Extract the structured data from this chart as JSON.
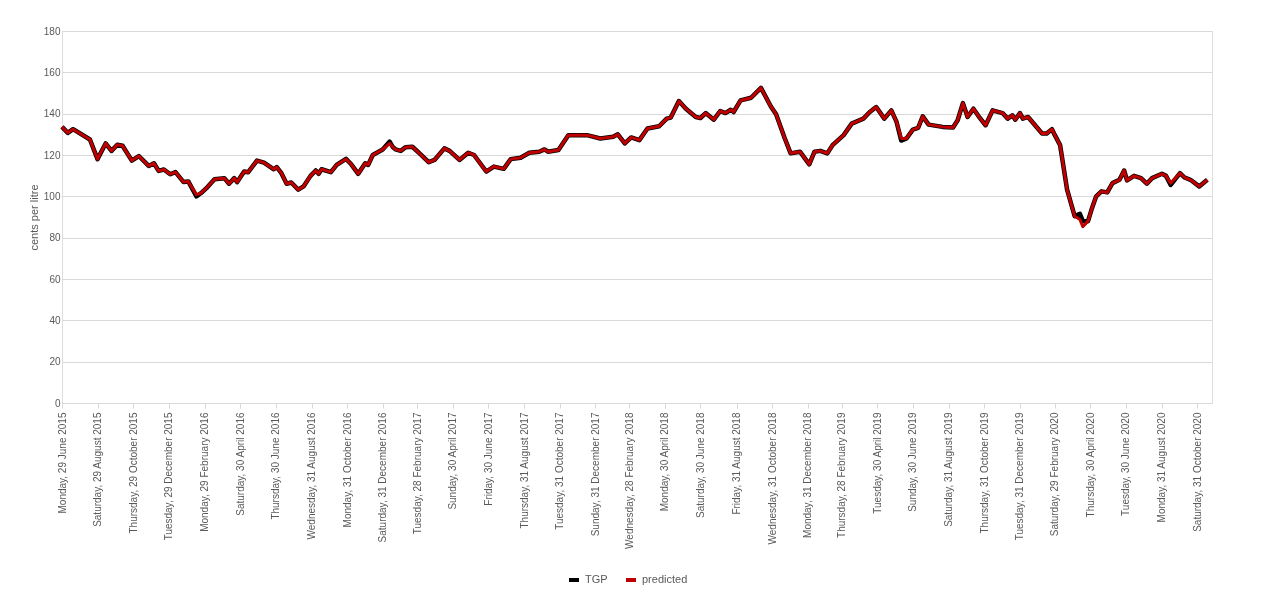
{
  "chart_data": {
    "type": "line",
    "ylabel": "cents per litre",
    "xlim": [
      "2015-06-29",
      "2020-11-25"
    ],
    "ylim": [
      0,
      180
    ],
    "yticks": [
      0,
      20,
      40,
      60,
      80,
      100,
      120,
      140,
      160,
      180
    ],
    "xticks": [
      {
        "value": "2015-06-29",
        "label": "Monday, 29 June 2015"
      },
      {
        "value": "2015-08-29",
        "label": "Saturday, 29 August 2015"
      },
      {
        "value": "2015-10-29",
        "label": "Thursday, 29 October 2015"
      },
      {
        "value": "2015-12-29",
        "label": "Tuesday, 29 December 2015"
      },
      {
        "value": "2016-02-29",
        "label": "Monday, 29 February 2016"
      },
      {
        "value": "2016-04-30",
        "label": "Saturday, 30 April 2016"
      },
      {
        "value": "2016-06-30",
        "label": "Thursday, 30 June 2016"
      },
      {
        "value": "2016-08-31",
        "label": "Wednesday, 31 August 2016"
      },
      {
        "value": "2016-10-31",
        "label": "Monday, 31 October 2016"
      },
      {
        "value": "2016-12-31",
        "label": "Saturday, 31 December 2016"
      },
      {
        "value": "2017-02-28",
        "label": "Tuesday, 28 February 2017"
      },
      {
        "value": "2017-04-30",
        "label": "Sunday, 30 April 2017"
      },
      {
        "value": "2017-06-30",
        "label": "Friday, 30 June 2017"
      },
      {
        "value": "2017-08-31",
        "label": "Thursday, 31 August 2017"
      },
      {
        "value": "2017-10-31",
        "label": "Tuesday, 31 October 2017"
      },
      {
        "value": "2017-12-31",
        "label": "Sunday, 31 December 2017"
      },
      {
        "value": "2018-02-28",
        "label": "Wednesday, 28 February 2018"
      },
      {
        "value": "2018-04-30",
        "label": "Monday, 30 April 2018"
      },
      {
        "value": "2018-06-30",
        "label": "Saturday, 30 June 2018"
      },
      {
        "value": "2018-08-31",
        "label": "Friday, 31 August 2018"
      },
      {
        "value": "2018-10-31",
        "label": "Wednesday, 31 October 2018"
      },
      {
        "value": "2018-12-31",
        "label": "Monday, 31 December 2018"
      },
      {
        "value": "2019-02-28",
        "label": "Thursday, 28 February 2019"
      },
      {
        "value": "2019-04-30",
        "label": "Tuesday, 30 April 2019"
      },
      {
        "value": "2019-06-30",
        "label": "Sunday, 30 June 2019"
      },
      {
        "value": "2019-08-31",
        "label": "Saturday, 31 August 2019"
      },
      {
        "value": "2019-10-31",
        "label": "Thursday, 31 October 2019"
      },
      {
        "value": "2019-12-31",
        "label": "Tuesday, 31 December 2019"
      },
      {
        "value": "2020-02-29",
        "label": "Saturday, 29 February 2020"
      },
      {
        "value": "2020-04-30",
        "label": "Thursday, 30 April 2020"
      },
      {
        "value": "2020-06-30",
        "label": "Tuesday, 30 June 2020"
      },
      {
        "value": "2020-08-31",
        "label": "Monday, 31 August 2020"
      },
      {
        "value": "2020-10-31",
        "label": "Saturday, 31 October 2020"
      }
    ],
    "x": [
      "2015-06-29",
      "2015-07-09",
      "2015-07-18",
      "2015-08-16",
      "2015-08-29",
      "2015-09-12",
      "2015-09-22",
      "2015-10-02",
      "2015-10-11",
      "2015-10-27",
      "2015-11-08",
      "2015-11-25",
      "2015-12-04",
      "2015-12-12",
      "2015-12-21",
      "2016-01-01",
      "2016-01-10",
      "2016-01-24",
      "2016-02-01",
      "2016-02-15",
      "2016-02-23",
      "2016-03-05",
      "2016-03-17",
      "2016-04-03",
      "2016-04-11",
      "2016-04-20",
      "2016-04-25",
      "2016-05-07",
      "2016-05-14",
      "2016-05-29",
      "2016-06-10",
      "2016-06-27",
      "2016-07-02",
      "2016-07-10",
      "2016-07-19",
      "2016-07-27",
      "2016-08-08",
      "2016-08-17",
      "2016-08-29",
      "2016-09-07",
      "2016-09-12",
      "2016-09-17",
      "2016-10-03",
      "2016-10-13",
      "2016-10-29",
      "2016-11-07",
      "2016-11-19",
      "2016-12-01",
      "2016-12-06",
      "2016-12-14",
      "2016-12-31",
      "2017-01-12",
      "2017-01-17",
      "2017-01-22",
      "2017-01-31",
      "2017-02-08",
      "2017-02-20",
      "2017-03-03",
      "2017-03-20",
      "2017-03-30",
      "2017-04-16",
      "2017-04-25",
      "2017-05-12",
      "2017-05-27",
      "2017-06-06",
      "2017-06-27",
      "2017-07-10",
      "2017-07-27",
      "2017-08-08",
      "2017-08-25",
      "2017-09-09",
      "2017-09-26",
      "2017-10-05",
      "2017-10-11",
      "2017-10-29",
      "2017-11-15",
      "2017-12-17",
      "2018-01-09",
      "2018-01-31",
      "2018-02-08",
      "2018-02-20",
      "2018-03-03",
      "2018-03-17",
      "2018-03-31",
      "2018-04-20",
      "2018-05-03",
      "2018-05-10",
      "2018-05-24",
      "2018-06-05",
      "2018-06-22",
      "2018-06-30",
      "2018-07-09",
      "2018-07-23",
      "2018-08-03",
      "2018-08-12",
      "2018-08-21",
      "2018-08-26",
      "2018-09-07",
      "2018-09-25",
      "2018-10-12",
      "2018-10-29",
      "2018-11-07",
      "2018-11-22",
      "2018-12-02",
      "2018-12-18",
      "2019-01-03",
      "2019-01-12",
      "2019-01-22",
      "2019-02-03",
      "2019-02-12",
      "2019-03-03",
      "2019-03-17",
      "2019-04-06",
      "2019-04-17",
      "2019-04-28",
      "2019-05-12",
      "2019-05-24",
      "2019-06-02",
      "2019-06-10",
      "2019-06-19",
      "2019-06-30",
      "2019-07-09",
      "2019-07-17",
      "2019-07-27",
      "2019-08-20",
      "2019-09-07",
      "2019-09-15",
      "2019-09-24",
      "2019-10-02",
      "2019-10-12",
      "2019-10-21",
      "2019-11-02",
      "2019-11-14",
      "2019-12-01",
      "2019-12-10",
      "2019-12-18",
      "2019-12-23",
      "2019-12-31",
      "2020-01-05",
      "2020-01-14",
      "2020-02-07",
      "2020-02-15",
      "2020-02-24",
      "2020-02-29",
      "2020-03-09",
      "2020-03-21",
      "2020-04-03",
      "2020-04-12",
      "2020-04-17",
      "2020-04-26",
      "2020-05-02",
      "2020-05-10",
      "2020-05-19",
      "2020-05-29",
      "2020-06-07",
      "2020-06-19",
      "2020-06-27",
      "2020-07-02",
      "2020-07-14",
      "2020-07-26",
      "2020-08-05",
      "2020-08-14",
      "2020-08-31",
      "2020-09-07",
      "2020-09-15",
      "2020-10-01",
      "2020-10-09",
      "2020-10-19",
      "2020-11-03",
      "2020-11-17"
    ],
    "series": [
      {
        "name": "TGP",
        "color": "#000000",
        "values": [
          133.6,
          130.7,
          132.5,
          127.5,
          118,
          125.6,
          122,
          125,
          124.5,
          117.3,
          119.5,
          114.7,
          116,
          112.3,
          113,
          110.7,
          111.7,
          106.9,
          107.2,
          100,
          101.6,
          104.5,
          108.3,
          108.8,
          106.1,
          108.8,
          106.9,
          112,
          111.7,
          117.3,
          116.3,
          113.1,
          114.1,
          111.2,
          106.1,
          106.7,
          103.2,
          104.8,
          109.9,
          112.5,
          110.9,
          113.1,
          111.7,
          115.2,
          118.1,
          115.5,
          110.9,
          116,
          115.2,
          120,
          122.7,
          126.5,
          124,
          122.7,
          122,
          123.7,
          124,
          121.1,
          116.5,
          117.6,
          123.2,
          122,
          117.6,
          121.1,
          120,
          112,
          114.4,
          113.3,
          118,
          118.7,
          121.1,
          121.6,
          122.7,
          121.6,
          122.4,
          129.6,
          129.6,
          128,
          128.8,
          130,
          125.6,
          128.5,
          127.2,
          132.8,
          133.9,
          137.6,
          138.1,
          146.1,
          142.4,
          138.4,
          137.9,
          140.3,
          137.1,
          141.3,
          140.3,
          141.9,
          140.8,
          146.4,
          147.7,
          152.5,
          143.5,
          139.7,
          128,
          120.8,
          121.6,
          115.5,
          121.6,
          122,
          120.8,
          124.8,
          129.6,
          135.2,
          137.6,
          140.8,
          143.2,
          137.6,
          141.6,
          136,
          127,
          128,
          132.3,
          133.1,
          138.7,
          134.7,
          133.6,
          133.3,
          136.8,
          145.1,
          138.4,
          142.4,
          138.7,
          134.4,
          141.6,
          140.3,
          137.6,
          139.2,
          137.1,
          140.3,
          137.6,
          138.4,
          130.4,
          130.4,
          132.5,
          129.6,
          124.8,
          103.2,
          90.4,
          91.5,
          88,
          88,
          93.6,
          100,
          102.4,
          101.9,
          106.4,
          108,
          112.5,
          107.7,
          109.9,
          108.8,
          106.1,
          108.8,
          110.9,
          109.9,
          105.5,
          111.2,
          109.1,
          108,
          104.8,
          108
        ]
      },
      {
        "name": "predicted",
        "color": "#c00000",
        "values": [
          133.6,
          130.7,
          132.5,
          127.5,
          118,
          125.6,
          122,
          125,
          124.5,
          117.3,
          119.5,
          114.7,
          116,
          112.3,
          113,
          110.7,
          111.7,
          106.9,
          107.2,
          100.8,
          101.6,
          104.5,
          108.3,
          108.8,
          106.1,
          108.8,
          106.9,
          112,
          111.7,
          117.3,
          116.3,
          113.1,
          114.1,
          111.2,
          106.1,
          106.7,
          103.2,
          104.8,
          109.9,
          112.5,
          110.9,
          113.1,
          111.7,
          115.2,
          118.1,
          115.5,
          110.9,
          116,
          115.2,
          120,
          122.7,
          125.6,
          124,
          122.7,
          122,
          123.7,
          124,
          121.1,
          116.5,
          117.6,
          123.2,
          122,
          117.6,
          121.1,
          120,
          112,
          114.4,
          113.3,
          118,
          118.7,
          121.1,
          121.6,
          122.7,
          121.6,
          122.4,
          129.6,
          129.6,
          128,
          128.8,
          130,
          125.6,
          128.5,
          127.2,
          132.8,
          133.9,
          137.6,
          138.1,
          146.1,
          142.4,
          138.4,
          137.9,
          140.3,
          137.1,
          141.3,
          140.3,
          141.9,
          140.8,
          146.4,
          147.7,
          152.5,
          143.5,
          139.7,
          128,
          120.8,
          121.6,
          115.5,
          121.6,
          122,
          120.8,
          124.8,
          129.6,
          135.2,
          137.6,
          140.8,
          143.2,
          137.6,
          141.6,
          136,
          128,
          128,
          132.3,
          133.1,
          138.7,
          134.7,
          133.6,
          133.3,
          136.8,
          145.1,
          138.4,
          142.4,
          138.7,
          134.4,
          141.6,
          140.3,
          137.6,
          139.2,
          137.1,
          140.3,
          137.6,
          138.4,
          130.4,
          130.4,
          132.5,
          129.6,
          124.8,
          103.2,
          90.4,
          88.8,
          85.3,
          88,
          93.6,
          100,
          102.4,
          101.9,
          106.4,
          108,
          112.5,
          107.7,
          109.9,
          108.8,
          106.1,
          108.8,
          110.9,
          109.9,
          106.4,
          111.2,
          109.1,
          108,
          104.8,
          108
        ]
      }
    ],
    "grid": "y",
    "legend": "bottom",
    "line_style": "solid",
    "marker": "none"
  }
}
